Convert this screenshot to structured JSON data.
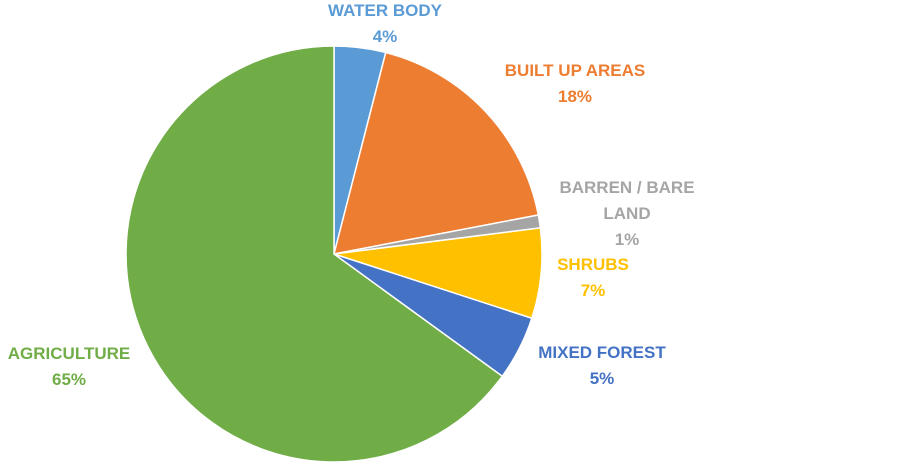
{
  "chart_data": {
    "type": "pie",
    "title": "",
    "start_angle_deg": 0,
    "direction": "clockwise",
    "slices": [
      {
        "name": "WATER BODY",
        "value": 4,
        "label_lines": [
          "WATER BODY"
        ],
        "value_label": "4%",
        "color": "#5B9BD5"
      },
      {
        "name": "BUILT UP AREAS",
        "value": 18,
        "label_lines": [
          "BUILT UP AREAS"
        ],
        "value_label": "18%",
        "color": "#ED7D31"
      },
      {
        "name": "BARREN / BARE LAND",
        "value": 1,
        "label_lines": [
          "BARREN / BARE",
          "LAND"
        ],
        "value_label": "1%",
        "color": "#A5A5A5"
      },
      {
        "name": "SHRUBS",
        "value": 7,
        "label_lines": [
          "SHRUBS"
        ],
        "value_label": "7%",
        "color": "#FFC000"
      },
      {
        "name": "MIXED FOREST",
        "value": 5,
        "label_lines": [
          "MIXED FOREST"
        ],
        "value_label": "5%",
        "color": "#4472C4"
      },
      {
        "name": "AGRICULTURE",
        "value": 65,
        "label_lines": [
          "AGRICULTURE"
        ],
        "value_label": "65%",
        "color": "#70AD47"
      }
    ]
  }
}
